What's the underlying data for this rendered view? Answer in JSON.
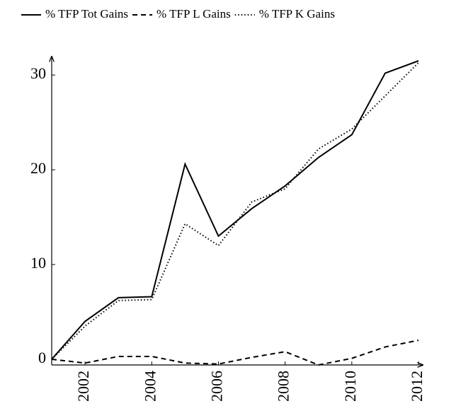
{
  "chart_data": {
    "type": "line",
    "x": [
      2001,
      2002,
      2003,
      2004,
      2005,
      2006,
      2007,
      2008,
      2009,
      2010,
      2011,
      2012
    ],
    "series": [
      {
        "name": "% TFP Tot Gains",
        "color": "#000000",
        "dash": "solid",
        "values": [
          0,
          4.0,
          6.5,
          6.6,
          20.6,
          13.0,
          15.9,
          18.3,
          21.3,
          23.7,
          30.2,
          31.5
        ]
      },
      {
        "name": "% TFP L Gains",
        "color": "#000000",
        "dash": "dashed",
        "values": [
          0,
          -0.4,
          0.3,
          0.3,
          -0.4,
          -0.5,
          0.2,
          0.8,
          -0.6,
          0.1,
          1.3,
          2.0
        ]
      },
      {
        "name": "% TFP K Gains",
        "color": "#000000",
        "dash": "dotted",
        "values": [
          0,
          3.5,
          6.2,
          6.3,
          14.3,
          12.0,
          16.6,
          18.0,
          22.2,
          24.3,
          27.8,
          31.3
        ]
      }
    ],
    "xlim": [
      2001,
      2012
    ],
    "xticks": [
      2002,
      2004,
      2006,
      2008,
      2010,
      2012
    ],
    "ylim": [
      -0.6,
      31.5
    ],
    "yticks": [
      0,
      10,
      20,
      30
    ],
    "grid": false,
    "legend": "top"
  }
}
